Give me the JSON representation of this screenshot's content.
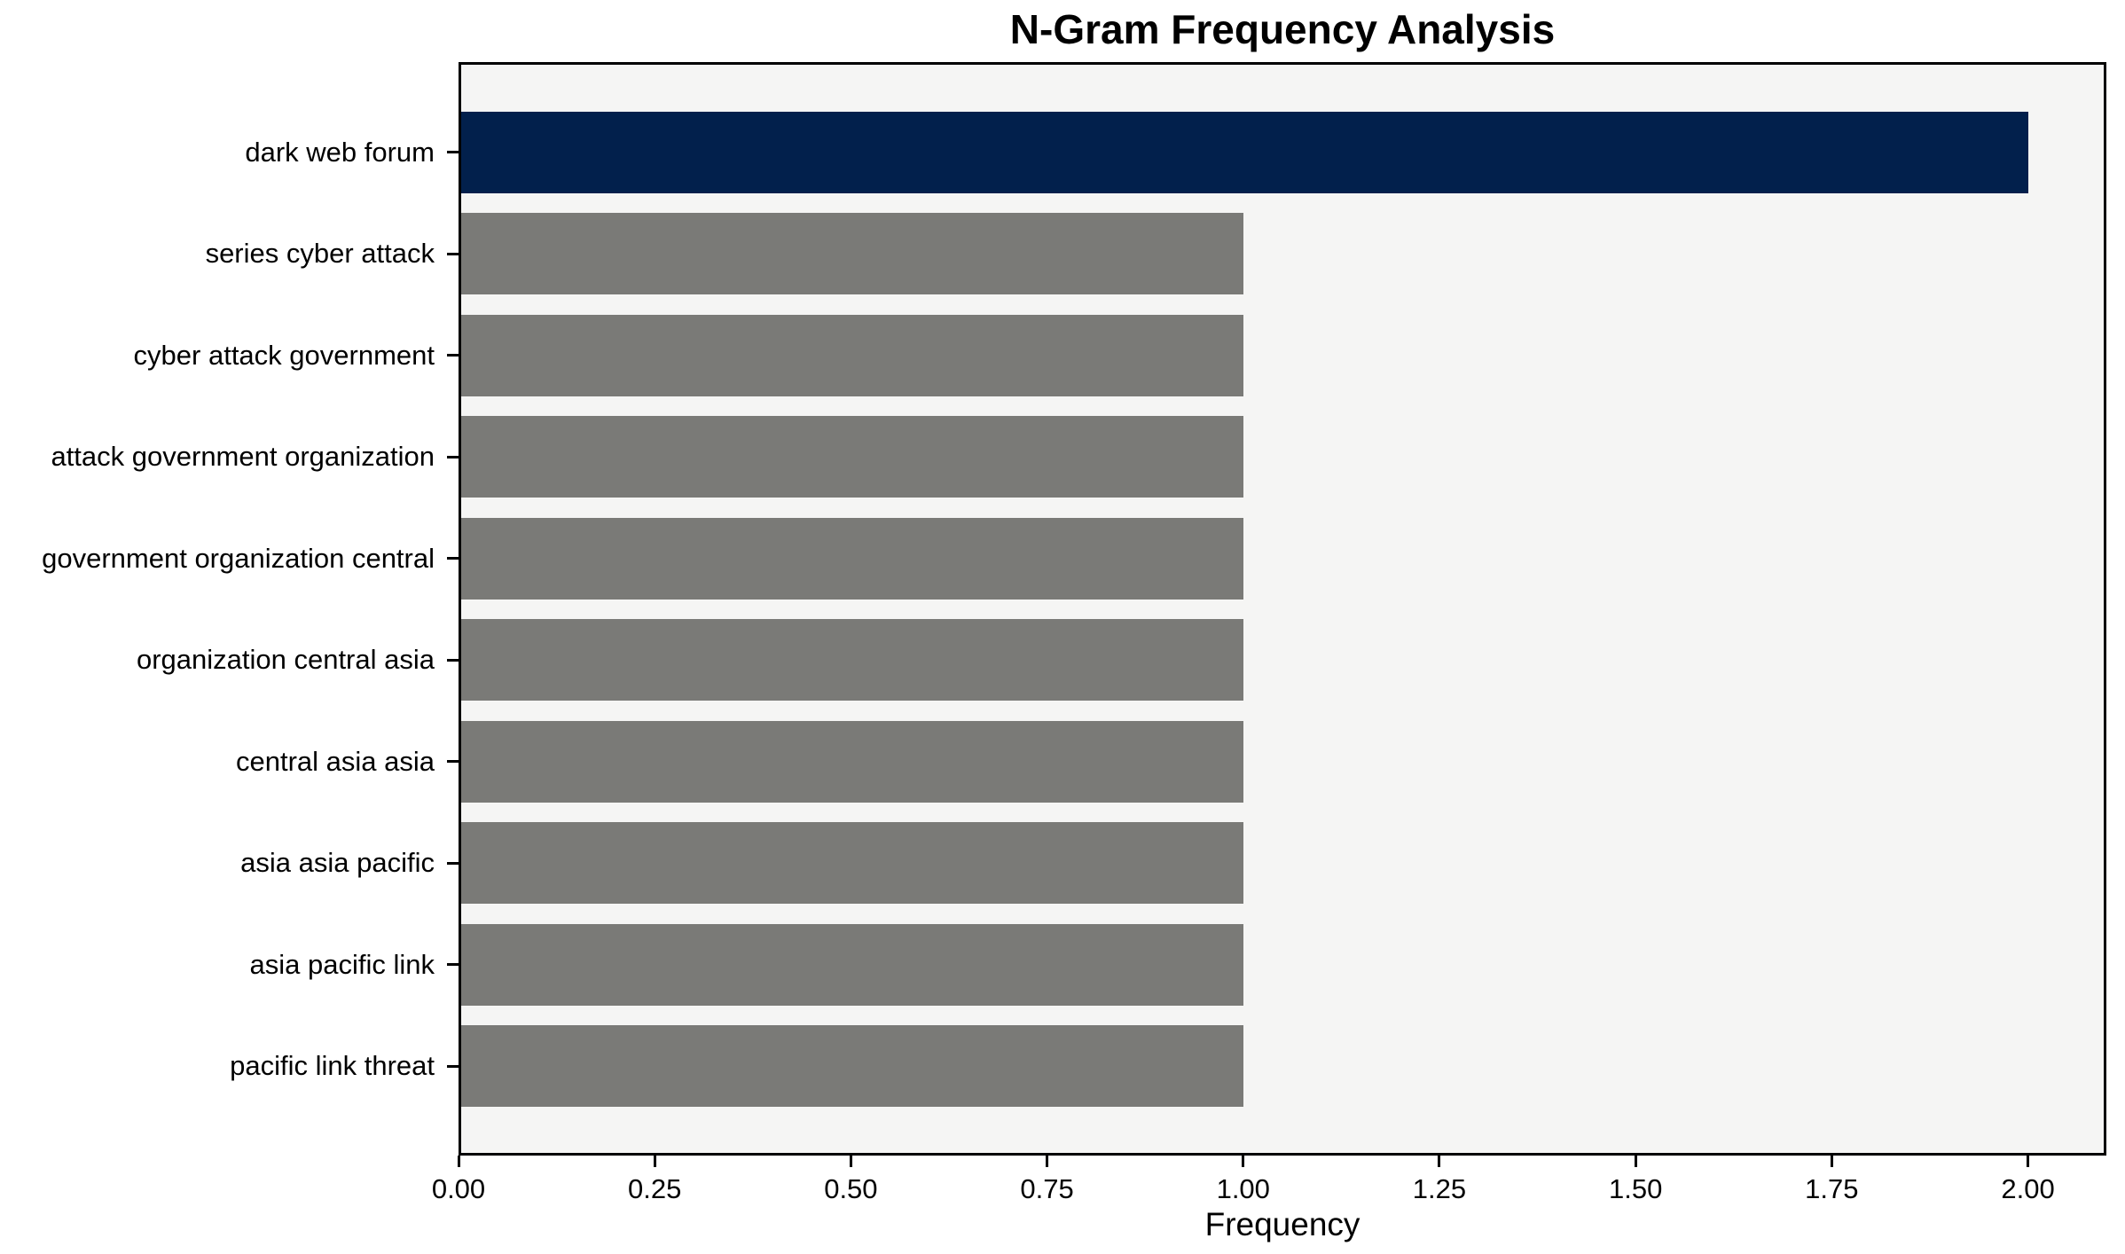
{
  "chart_data": {
    "type": "bar",
    "orientation": "horizontal",
    "title": "N-Gram Frequency Analysis",
    "xlabel": "Frequency",
    "ylabel": "",
    "categories": [
      "dark web forum",
      "series cyber attack",
      "cyber attack government",
      "attack government organization",
      "government organization central",
      "organization central asia",
      "central asia asia",
      "asia asia pacific",
      "asia pacific link",
      "pacific link threat"
    ],
    "values": [
      2.0,
      1.0,
      1.0,
      1.0,
      1.0,
      1.0,
      1.0,
      1.0,
      1.0,
      1.0
    ],
    "highlight_index": 0,
    "xlim": [
      0,
      2.1
    ],
    "xticks": [
      0.0,
      0.25,
      0.5,
      0.75,
      1.0,
      1.25,
      1.5,
      1.75,
      2.0
    ],
    "xtick_labels": [
      "0.00",
      "0.25",
      "0.50",
      "0.75",
      "1.00",
      "1.25",
      "1.50",
      "1.75",
      "2.00"
    ],
    "grid": false,
    "legend": null,
    "colors": {
      "highlight_bar": "#02204c",
      "default_bar": "#7a7a77",
      "plot_background": "#f5f5f4",
      "figure_background": "#ffffff",
      "axis_and_text": "#000000"
    }
  }
}
